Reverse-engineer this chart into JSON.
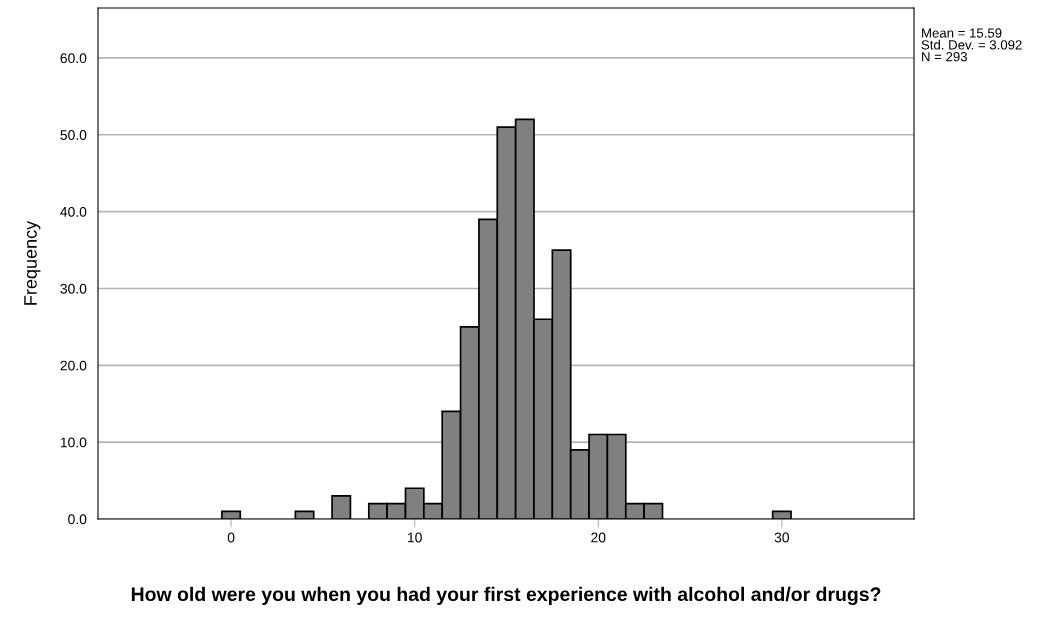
{
  "chart_data": {
    "type": "histogram",
    "xlabel": "How old were you when you had your first experience with alcohol and/or drugs?",
    "ylabel": "Frequency",
    "bins": [
      -0.5,
      0.5,
      1.5,
      2.5,
      3.5,
      4.5,
      5.5,
      6.5,
      7.5,
      8.5,
      9.5,
      10.5,
      11.5,
      12.5,
      13.5,
      14.5,
      15.5,
      16.5,
      17.5,
      18.5,
      19.5,
      20.5,
      21.5,
      22.5,
      23.5,
      24.5,
      25.5,
      26.5,
      27.5,
      28.5,
      29.5,
      30.5
    ],
    "values": [
      1,
      0,
      0,
      0,
      1,
      0,
      3,
      0,
      2,
      2,
      4,
      2,
      14,
      25,
      39,
      51,
      52,
      26,
      35,
      9,
      11,
      11,
      2,
      2,
      0,
      0,
      0,
      0,
      0,
      0,
      1
    ],
    "color": "#808080",
    "xlim": [
      -7.25,
      37.2
    ],
    "xticks": [
      0,
      10,
      20,
      30
    ],
    "ylim": [
      0,
      66.5
    ],
    "yticks": [
      {
        "value": 0,
        "label": "0.0"
      },
      {
        "value": 10,
        "label": "10.0"
      },
      {
        "value": 20,
        "label": "20.0"
      },
      {
        "value": 30,
        "label": "30.0"
      },
      {
        "value": 40,
        "label": "40.0"
      },
      {
        "value": 50,
        "label": "50.0"
      },
      {
        "value": 60,
        "label": "60.0"
      }
    ],
    "grid": "y",
    "annotations": [
      "Mean = 15.59\nStd. Dev. = 3.092\nN = 293"
    ]
  }
}
